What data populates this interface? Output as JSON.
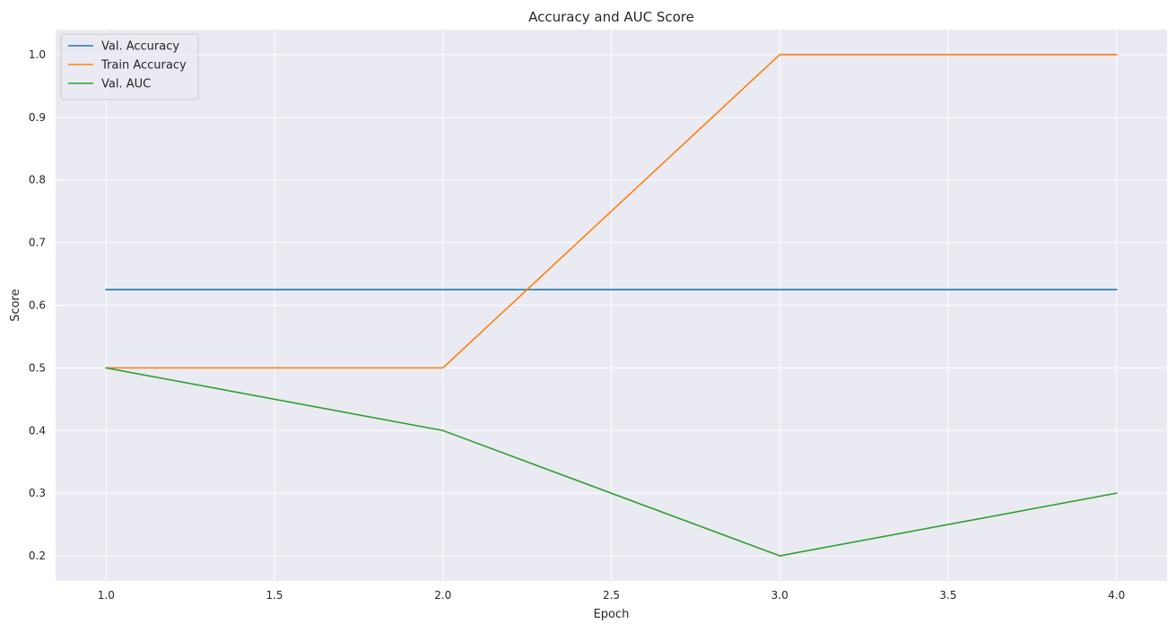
{
  "chart_data": {
    "type": "line",
    "title": "Accuracy and AUC Score",
    "xlabel": "Epoch",
    "ylabel": "Score",
    "x": [
      1,
      2,
      3,
      4
    ],
    "xlim": [
      0.85,
      4.15
    ],
    "ylim": [
      0.16,
      1.04
    ],
    "xticks": [
      "1.0",
      "1.5",
      "2.0",
      "2.5",
      "3.0",
      "3.5",
      "4.0"
    ],
    "yticks": [
      "0.2",
      "0.3",
      "0.4",
      "0.5",
      "0.6",
      "0.7",
      "0.8",
      "0.9",
      "1.0"
    ],
    "grid": true,
    "legend_position": "upper-left",
    "background_color": "#eaeaf2",
    "grid_color": "#ffffff",
    "series": [
      {
        "name": "Val. Accuracy",
        "color": "#1f77b4",
        "values": [
          0.625,
          0.625,
          0.625,
          0.625
        ]
      },
      {
        "name": "Train Accuracy",
        "color": "#ff7f0e",
        "values": [
          0.5,
          0.5,
          1.0,
          1.0
        ]
      },
      {
        "name": "Val. AUC",
        "color": "#2ca02c",
        "values": [
          0.5,
          0.4,
          0.2,
          0.3
        ]
      }
    ]
  }
}
